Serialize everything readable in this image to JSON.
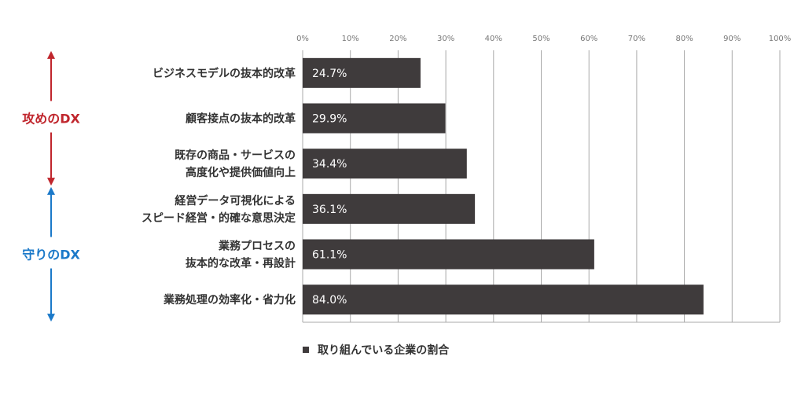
{
  "chart_data": {
    "type": "bar",
    "orientation": "horizontal",
    "categories": [
      "ビジネスモデルの抜本的改革",
      "顧客接点の抜本的改革",
      "既存の商品・サービスの\n高度化や提供価値向上",
      "経営データ可視化による\nスピード経営・的確な意思決定",
      "業務プロセスの\n抜本的な改革・再設計",
      "業務処理の効率化・省力化"
    ],
    "series": [
      {
        "name": "取り組んでいる企業の割合",
        "values": [
          24.7,
          29.9,
          34.4,
          36.1,
          61.1,
          84.0
        ]
      }
    ],
    "value_labels": [
      "24.7%",
      "29.9%",
      "34.4%",
      "36.1%",
      "61.1%",
      "84.0%"
    ],
    "xlim": [
      0,
      100
    ],
    "x_ticks": [
      "0%",
      "10%",
      "20%",
      "30%",
      "40%",
      "50%",
      "60%",
      "70%",
      "80%",
      "90%",
      "100%"
    ],
    "grid": true,
    "legend": "bottom",
    "bar_color": "#3f3b3c",
    "groups": [
      {
        "label": "攻めのDX",
        "color": "#c0262d",
        "first_category": 0,
        "last_category": 2
      },
      {
        "label": "守りのDX",
        "color": "#1b79c9",
        "first_category": 3,
        "last_category": 5
      }
    ]
  }
}
